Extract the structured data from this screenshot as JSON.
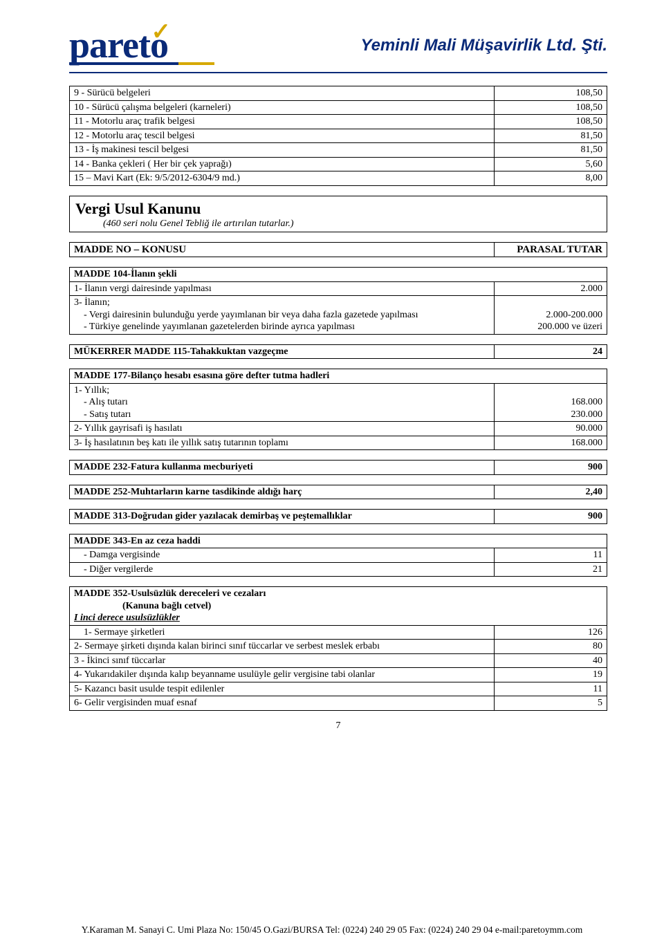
{
  "logo": {
    "brand_pre": "paret",
    "brand_o": "o",
    "brand_color": "#0a2a78",
    "check_color": "#d6a800",
    "right_text": "Yeminli Mali Müşavirlik Ltd. Şti."
  },
  "top_rows": [
    {
      "label": "9 - Sürücü belgeleri",
      "value": "108,50"
    },
    {
      "label": "10 - Sürücü çalışma belgeleri (karneleri)",
      "value": "108,50"
    },
    {
      "label": "11 - Motorlu araç trafik belgesi",
      "value": "108,50"
    },
    {
      "label": "12 - Motorlu araç tescil belgesi",
      "value": "81,50"
    },
    {
      "label": "13 - İş makinesi tescil belgesi",
      "value": "81,50"
    },
    {
      "label": "14 - Banka çekleri ( Her bir çek yaprağı)",
      "value": "5,60"
    },
    {
      "label": "15 – Mavi Kart (Ek: 9/5/2012-6304/9 md.)",
      "value": "8,00"
    }
  ],
  "section": {
    "title": "Vergi Usul Kanunu",
    "subtitle": "(460 seri nolu Genel Tebliğ ile artırılan tutarlar.)"
  },
  "cols": {
    "left": "MADDE NO – KONUSU",
    "right": "PARASAL TUTAR"
  },
  "madde104": {
    "header": "MADDE 104-İlanın şekli",
    "r1_label": "1- İlanın vergi dairesinde yapılması",
    "r1_val": "2.000",
    "r2_top": "3- İlanın;",
    "r2_a": "- Vergi dairesinin bulunduğu yerde yayımlanan bir veya daha fazla gazetede yapılması",
    "r2_b": "- Türkiye genelinde yayımlanan gazetelerden birinde ayrıca yapılması",
    "r2_val_a": "2.000-200.000",
    "r2_val_b": "200.000 ve üzeri"
  },
  "mukerrer115": {
    "label": "MÜKERRER MADDE 115-Tahakkuktan vazgeçme",
    "val": "24"
  },
  "madde177": {
    "header": "MADDE 177-Bilanço hesabı esasına göre defter tutma hadleri",
    "r1_top": "1- Yıllık;",
    "r1_a": "- Alış tutarı",
    "r1_b": "- Satış tutarı",
    "r1_val_a": "168.000",
    "r1_val_b": "230.000",
    "r2_label": "2- Yıllık gayrisafi iş hasılatı",
    "r2_val": "90.000",
    "r3_label": "3- İş hasılatının beş katı ile yıllık satış tutarının toplamı",
    "r3_val": "168.000"
  },
  "madde232": {
    "label": "MADDE 232-Fatura kullanma mecburiyeti",
    "val": "900"
  },
  "madde252": {
    "label": "MADDE 252-Muhtarların karne tasdikinde aldığı harç",
    "val": "2,40"
  },
  "madde313": {
    "label": "MADDE 313-Doğrudan gider yazılacak demirbaş ve peştemallıklar",
    "val": "900"
  },
  "madde343": {
    "header": "MADDE 343-En az ceza haddi",
    "a_label": "- Damga vergisinde",
    "a_val": "11",
    "b_label": "- Diğer vergilerde",
    "b_val": "21"
  },
  "madde352": {
    "header_l1": "MADDE 352-Usulsüzlük dereceleri ve cezaları",
    "header_l2": "(Kanuna bağlı cetvel)",
    "sub": "I inci derece usulsüzlükler",
    "rows": [
      {
        "label": "1- Sermaye şirketleri",
        "val": "126"
      },
      {
        "label": "2- Sermaye şirketi dışında kalan birinci sınıf tüccarlar ve serbest  meslek erbabı",
        "val": "80"
      },
      {
        "label": "3 - İkinci sınıf tüccarlar",
        "val": "40"
      },
      {
        "label": "4- Yukarıdakiler dışında kalıp beyanname usulüyle gelir vergisine tabi olanlar",
        "val": "19"
      },
      {
        "label": "5- Kazancı basit usulde tespit edilenler",
        "val": "11"
      },
      {
        "label": "6- Gelir vergisinden muaf esnaf",
        "val": "5"
      }
    ]
  },
  "pagenum": "7",
  "footer": "Y.Karaman M. Sanayi C. Umi Plaza No: 150/45 O.Gazi/BURSA Tel: (0224) 240 29 05 Fax: (0224) 240 29 04 e-mail:paretoymm.com"
}
